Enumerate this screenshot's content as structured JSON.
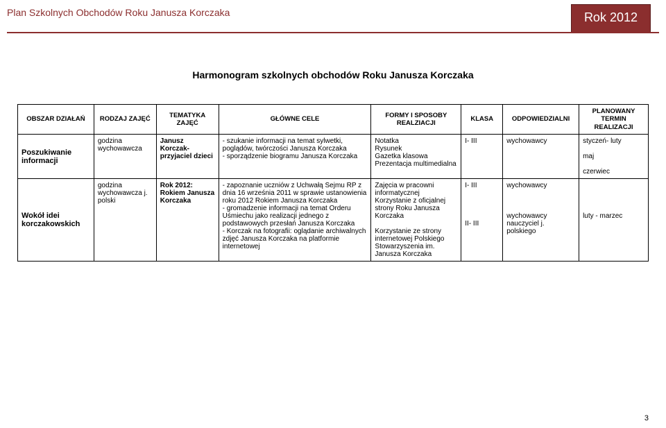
{
  "header": {
    "left": "Plan Szkolnych Obchodów Roku Janusza Korczaka",
    "year": "Rok 2012"
  },
  "title": "Harmonogram szkolnych obchodów Roku Janusza Korczaka",
  "columns": {
    "obszar": "OBSZAR DZIAŁAŃ",
    "rodzaj": "RODZAJ ZAJĘĆ",
    "tematyka": "TEMATYKA ZAJĘĆ",
    "cele": "GŁÓWNE CELE",
    "formy": "FORMY I SPOSOBY REALZIACJI",
    "klasa": "KLASA",
    "odp": "ODPOWIEDZIALNI",
    "termin": "PLANOWANY TERMIN REALIZACJI"
  },
  "rows": [
    {
      "obszar": "Poszukiwanie informacji",
      "rodzaj": "godzina wychowawcza",
      "tematyka": "Janusz Korczak- przyjaciel dzieci",
      "cele": "- szukanie informacji na temat sylwetki, poglądów, twórczości Janusza Korczaka\n- sporządzenie biogramu Janusza Korczaka",
      "formy": "Notatka\nRysunek\nGazetka klasowa\nPrezentacja multimedialna",
      "klasa": "I- III",
      "odp": "wychowawcy",
      "termin": "styczeń- luty\n\nmaj\n\nczerwiec"
    },
    {
      "obszar": "Wokół idei korczakowskich",
      "rodzaj": "godzina wychowawcza j. polski",
      "tematyka": "Rok 2012: Rokiem Janusza Korczaka",
      "cele": "- zapoznanie uczniów z Uchwałą Sejmu RP z dnia 16 września 2011 w sprawie ustanowienia roku 2012 Rokiem Janusza Korczaka\n- gromadzenie informacji na temat Orderu Uśmiechu jako realizacji jednego z podstawowych przesłań Janusza Korczaka\n- Korczak na fotografii: oglądanie archiwalnych zdjęć Janusza Korczaka na platformie internetowej",
      "formy": "Zajęcia w pracowni informatycznej\nKorzystanie z oficjalnej strony Roku Janusza Korczaka\n\nKorzystanie ze strony internetowej Polskiego Stowarzyszenia im. Janusza Korczaka",
      "klasa": "I- III\n\n\n\n\nII- III",
      "odp": "wychowawcy\n\n\n\nwychowawcy nauczyciel j. polskiego",
      "termin": "\n\n\n\nluty - marzec"
    }
  ],
  "pageNumber": "3"
}
